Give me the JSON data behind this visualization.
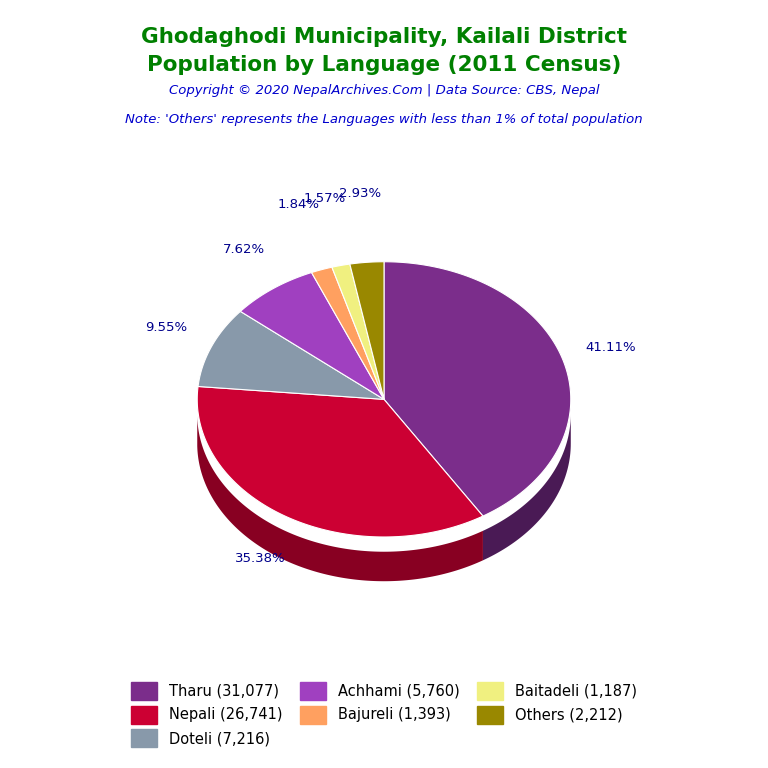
{
  "title_line1": "Ghodaghodi Municipality, Kailali District",
  "title_line2": "Population by Language (2011 Census)",
  "copyright_text": "Copyright © 2020 NepalArchives.Com | Data Source: CBS, Nepal",
  "note_text": "Note: 'Others' represents the Languages with less than 1% of total population",
  "title_color": "#008000",
  "copyright_color": "#0000CD",
  "note_color": "#0000CD",
  "labels": [
    "Tharu",
    "Nepali",
    "Doteli",
    "Achhami",
    "Bajureli",
    "Baitadeli",
    "Others"
  ],
  "values": [
    31077,
    26741,
    7216,
    5760,
    1393,
    1187,
    2212
  ],
  "percentages": [
    41.11,
    35.38,
    9.55,
    7.62,
    1.84,
    1.57,
    2.93
  ],
  "colors": [
    "#7B2D8B",
    "#CC0033",
    "#8899AA",
    "#A040C0",
    "#FFA060",
    "#F0F080",
    "#998800"
  ],
  "shadow_colors": [
    "#4A1A55",
    "#880022",
    "#556677",
    "#6A2080",
    "#AA6040",
    "#AAAA40",
    "#554400"
  ],
  "legend_labels": [
    "Tharu (31,077)",
    "Nepali (26,741)",
    "Doteli (7,216)",
    "Achhami (5,760)",
    "Bajureli (1,393)",
    "Baitadeli (1,187)",
    "Others (2,212)"
  ],
  "pct_label_color": "#00008B",
  "background_color": "#FFFFFF"
}
